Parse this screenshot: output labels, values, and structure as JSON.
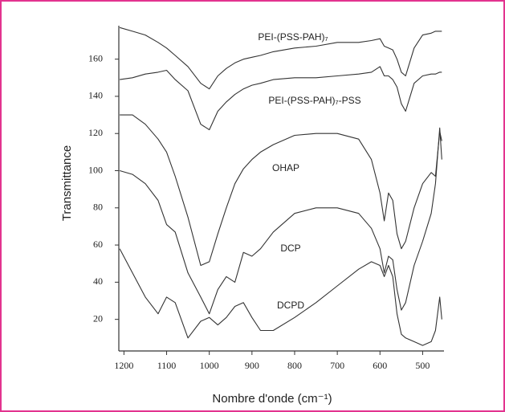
{
  "chart_data": {
    "type": "line",
    "x_label": "Nombre d'onde (cm⁻¹)",
    "y_label": "Transmittance",
    "xlim": [
      1212,
      450
    ],
    "ylim": [
      3,
      178
    ],
    "xticks": [
      1200,
      1100,
      1000,
      900,
      800,
      700,
      600,
      500
    ],
    "yticks": [
      20,
      40,
      60,
      80,
      100,
      120,
      140,
      160
    ],
    "x": [
      1210,
      1180,
      1150,
      1120,
      1100,
      1080,
      1050,
      1020,
      1000,
      980,
      960,
      940,
      920,
      900,
      880,
      850,
      800,
      750,
      700,
      650,
      620,
      600,
      590,
      580,
      570,
      560,
      550,
      540,
      520,
      500,
      480,
      470,
      460,
      455
    ],
    "series": [
      {
        "name": "PEI-(PSS-PAH)₇",
        "color": "#333333",
        "values": [
          177,
          175,
          173,
          169,
          166,
          162,
          156,
          147,
          144,
          151,
          155,
          158,
          160,
          161,
          162,
          164,
          166,
          167,
          169,
          169,
          170,
          171,
          167,
          166,
          165,
          160,
          153,
          151,
          166,
          173,
          174,
          175,
          175,
          175
        ]
      },
      {
        "name": "PEI-(PSS-PAH)₇-PSS",
        "color": "#333333",
        "values": [
          149,
          150,
          152,
          153,
          154,
          149,
          143,
          125,
          122,
          132,
          137,
          141,
          144,
          146,
          147,
          149,
          150,
          150,
          151,
          152,
          153,
          156,
          151,
          151,
          149,
          145,
          136,
          132,
          147,
          151,
          152,
          152,
          153,
          153
        ]
      },
      {
        "name": "OHAP",
        "color": "#333333",
        "values": [
          130,
          130,
          125,
          117,
          110,
          97,
          75,
          49,
          51,
          66,
          80,
          93,
          101,
          106,
          110,
          114,
          119,
          120,
          120,
          117,
          106,
          88,
          73,
          88,
          84,
          66,
          58,
          62,
          80,
          93,
          99,
          97,
          121,
          116
        ]
      },
      {
        "name": "DCP",
        "color": "#333333",
        "values": [
          100,
          98,
          93,
          84,
          71,
          67,
          45,
          32,
          23,
          36,
          43,
          40,
          56,
          54,
          58,
          67,
          77,
          80,
          80,
          77,
          69,
          58,
          45,
          54,
          52,
          36,
          25,
          29,
          49,
          62,
          77,
          93,
          123,
          106
        ]
      },
      {
        "name": "DCPD",
        "color": "#333333",
        "values": [
          58,
          45,
          32,
          23,
          32,
          29,
          10,
          19,
          21,
          17,
          21,
          27,
          29,
          21,
          14,
          14,
          21,
          29,
          38,
          47,
          51,
          49,
          43,
          49,
          43,
          23,
          12,
          10,
          8,
          6,
          8,
          14,
          32,
          20
        ]
      }
    ]
  }
}
